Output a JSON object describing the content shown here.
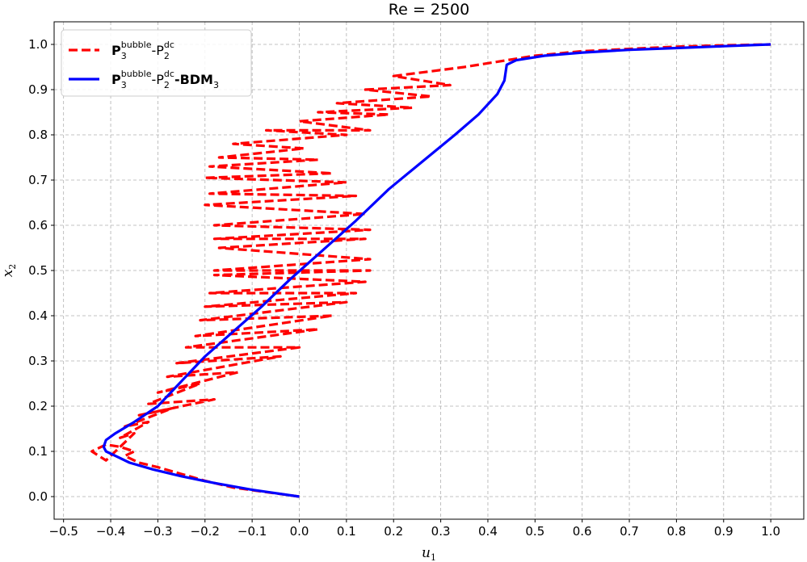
{
  "chart_data": {
    "type": "line",
    "title": "Re = 2500",
    "xlabel": "u",
    "xlabel_sub": "1",
    "ylabel": "x",
    "ylabel_sub": "2",
    "xlim": [
      -0.52,
      1.07
    ],
    "ylim": [
      -0.05,
      1.05
    ],
    "xticks": [
      "−0.5",
      "−0.4",
      "−0.3",
      "−0.2",
      "−0.1",
      "0.0",
      "0.1",
      "0.2",
      "0.3",
      "0.4",
      "0.5",
      "0.6",
      "0.7",
      "0.8",
      "0.9",
      "1.0"
    ],
    "yticks": [
      "0.0",
      "0.1",
      "0.2",
      "0.3",
      "0.4",
      "0.5",
      "0.6",
      "0.7",
      "0.8",
      "0.9",
      "1.0"
    ],
    "grid": true,
    "legend_position": "top-left",
    "series": [
      {
        "name": "P3bubble-P2dc",
        "legend": {
          "p": "P",
          "p_sup": "bubble",
          "p_sub": "3",
          "mid": "-P",
          "mid_sup": "dc",
          "mid_sub": "2",
          "tail": "",
          "tail_sub": ""
        },
        "color": "#ff0000",
        "style": "dashed",
        "x": [
          0.0,
          -0.07,
          -0.14,
          -0.2,
          -0.25,
          -0.3,
          -0.34,
          -0.37,
          -0.35,
          -0.38,
          -0.41,
          -0.44,
          -0.41,
          -0.35,
          -0.38,
          -0.32,
          -0.37,
          -0.27,
          -0.34,
          -0.18,
          -0.32,
          -0.21,
          -0.3,
          -0.13,
          -0.28,
          -0.04,
          -0.26,
          0.0,
          -0.24,
          0.04,
          -0.22,
          0.07,
          -0.21,
          0.1,
          -0.2,
          0.12,
          -0.19,
          0.14,
          -0.18,
          0.15,
          -0.18,
          0.15,
          -0.17,
          0.14,
          -0.18,
          0.15,
          -0.18,
          0.14,
          -0.2,
          0.12,
          -0.19,
          0.1,
          -0.2,
          0.07,
          -0.19,
          0.04,
          -0.17,
          0.01,
          -0.14,
          0.1,
          -0.07,
          0.15,
          0.0,
          0.19,
          0.04,
          0.24,
          0.08,
          0.28,
          0.14,
          0.32,
          0.2,
          0.35,
          0.5,
          0.6,
          0.7,
          0.8,
          0.9,
          1.0
        ],
        "y": [
          0.0,
          0.01,
          0.02,
          0.035,
          0.05,
          0.065,
          0.075,
          0.09,
          0.1,
          0.11,
          0.115,
          0.1,
          0.08,
          0.14,
          0.13,
          0.165,
          0.155,
          0.195,
          0.18,
          0.215,
          0.205,
          0.25,
          0.23,
          0.275,
          0.265,
          0.31,
          0.295,
          0.33,
          0.33,
          0.37,
          0.355,
          0.4,
          0.39,
          0.43,
          0.42,
          0.45,
          0.45,
          0.475,
          0.49,
          0.5,
          0.5,
          0.525,
          0.55,
          0.57,
          0.57,
          0.59,
          0.6,
          0.625,
          0.645,
          0.665,
          0.67,
          0.695,
          0.705,
          0.715,
          0.73,
          0.745,
          0.75,
          0.77,
          0.78,
          0.8,
          0.81,
          0.81,
          0.83,
          0.845,
          0.85,
          0.86,
          0.87,
          0.885,
          0.9,
          0.91,
          0.93,
          0.95,
          0.975,
          0.985,
          0.99,
          0.995,
          0.998,
          1.0
        ]
      },
      {
        "name": "P3bubble-P2dc-BDM3",
        "legend": {
          "p": "P",
          "p_sup": "bubble",
          "p_sub": "3",
          "mid": "-P",
          "mid_sup": "dc",
          "mid_sub": "2",
          "tail": "-BDM",
          "tail_sub": "3"
        },
        "color": "#0000ff",
        "style": "solid",
        "x": [
          0.0,
          -0.1,
          -0.18,
          -0.25,
          -0.31,
          -0.36,
          -0.39,
          -0.41,
          -0.415,
          -0.41,
          -0.39,
          -0.35,
          -0.3,
          -0.25,
          -0.2,
          -0.14,
          -0.08,
          -0.02,
          0.05,
          0.12,
          0.19,
          0.26,
          0.33,
          0.38,
          0.42,
          0.435,
          0.44,
          0.46,
          0.52,
          0.6,
          0.7,
          0.8,
          0.9,
          1.0
        ],
        "y": [
          0.0,
          0.015,
          0.03,
          0.045,
          0.06,
          0.075,
          0.09,
          0.1,
          0.11,
          0.125,
          0.14,
          0.165,
          0.2,
          0.255,
          0.31,
          0.365,
          0.42,
          0.48,
          0.545,
          0.61,
          0.68,
          0.74,
          0.8,
          0.845,
          0.89,
          0.92,
          0.955,
          0.965,
          0.975,
          0.982,
          0.988,
          0.992,
          0.996,
          1.0
        ]
      }
    ]
  }
}
